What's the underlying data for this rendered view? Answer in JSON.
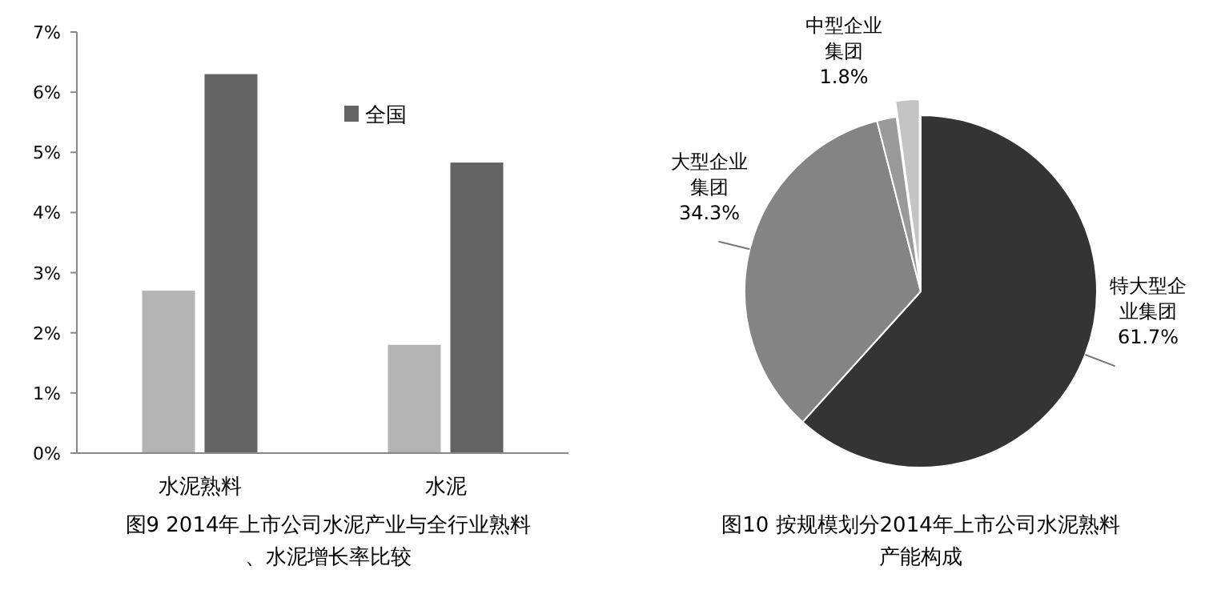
{
  "chart_data": [
    {
      "type": "bar",
      "title": "图9 2014年上市公司水泥产业与全行业熟料、水泥增长率比较",
      "categories": [
        "水泥熟料",
        "水泥"
      ],
      "series": [
        {
          "color": "#b4b4b4",
          "values": [
            2.7,
            1.8
          ]
        },
        {
          "name": "全国",
          "color": "#636363",
          "values": [
            6.3,
            4.83
          ]
        }
      ],
      "ylim": [
        0,
        7
      ],
      "yticks": [
        {
          "value": 0,
          "label": "0%"
        },
        {
          "value": 1,
          "label": "1%"
        },
        {
          "value": 2,
          "label": "2%"
        },
        {
          "value": 3,
          "label": "3%"
        },
        {
          "value": 4,
          "label": "4%"
        },
        {
          "value": 5,
          "label": "5%"
        },
        {
          "value": 6,
          "label": "6%"
        },
        {
          "value": 7,
          "label": "7%"
        }
      ],
      "grid": false,
      "legend": "top right"
    },
    {
      "type": "pie",
      "title": "图10 按规模划分2014年上市公司水泥熟料产能构成",
      "categories": [
        "特大型企业集团",
        "大型企业集团",
        "中型企业集团",
        null
      ],
      "values": [
        61.7,
        34.3,
        1.8,
        2.2
      ],
      "colors": [
        "#343434",
        "#848484",
        "#9a9a9a",
        "#c4c4c4"
      ],
      "value_labels": [
        "61.7%",
        "34.3%",
        "1.8%",
        null
      ]
    }
  ]
}
